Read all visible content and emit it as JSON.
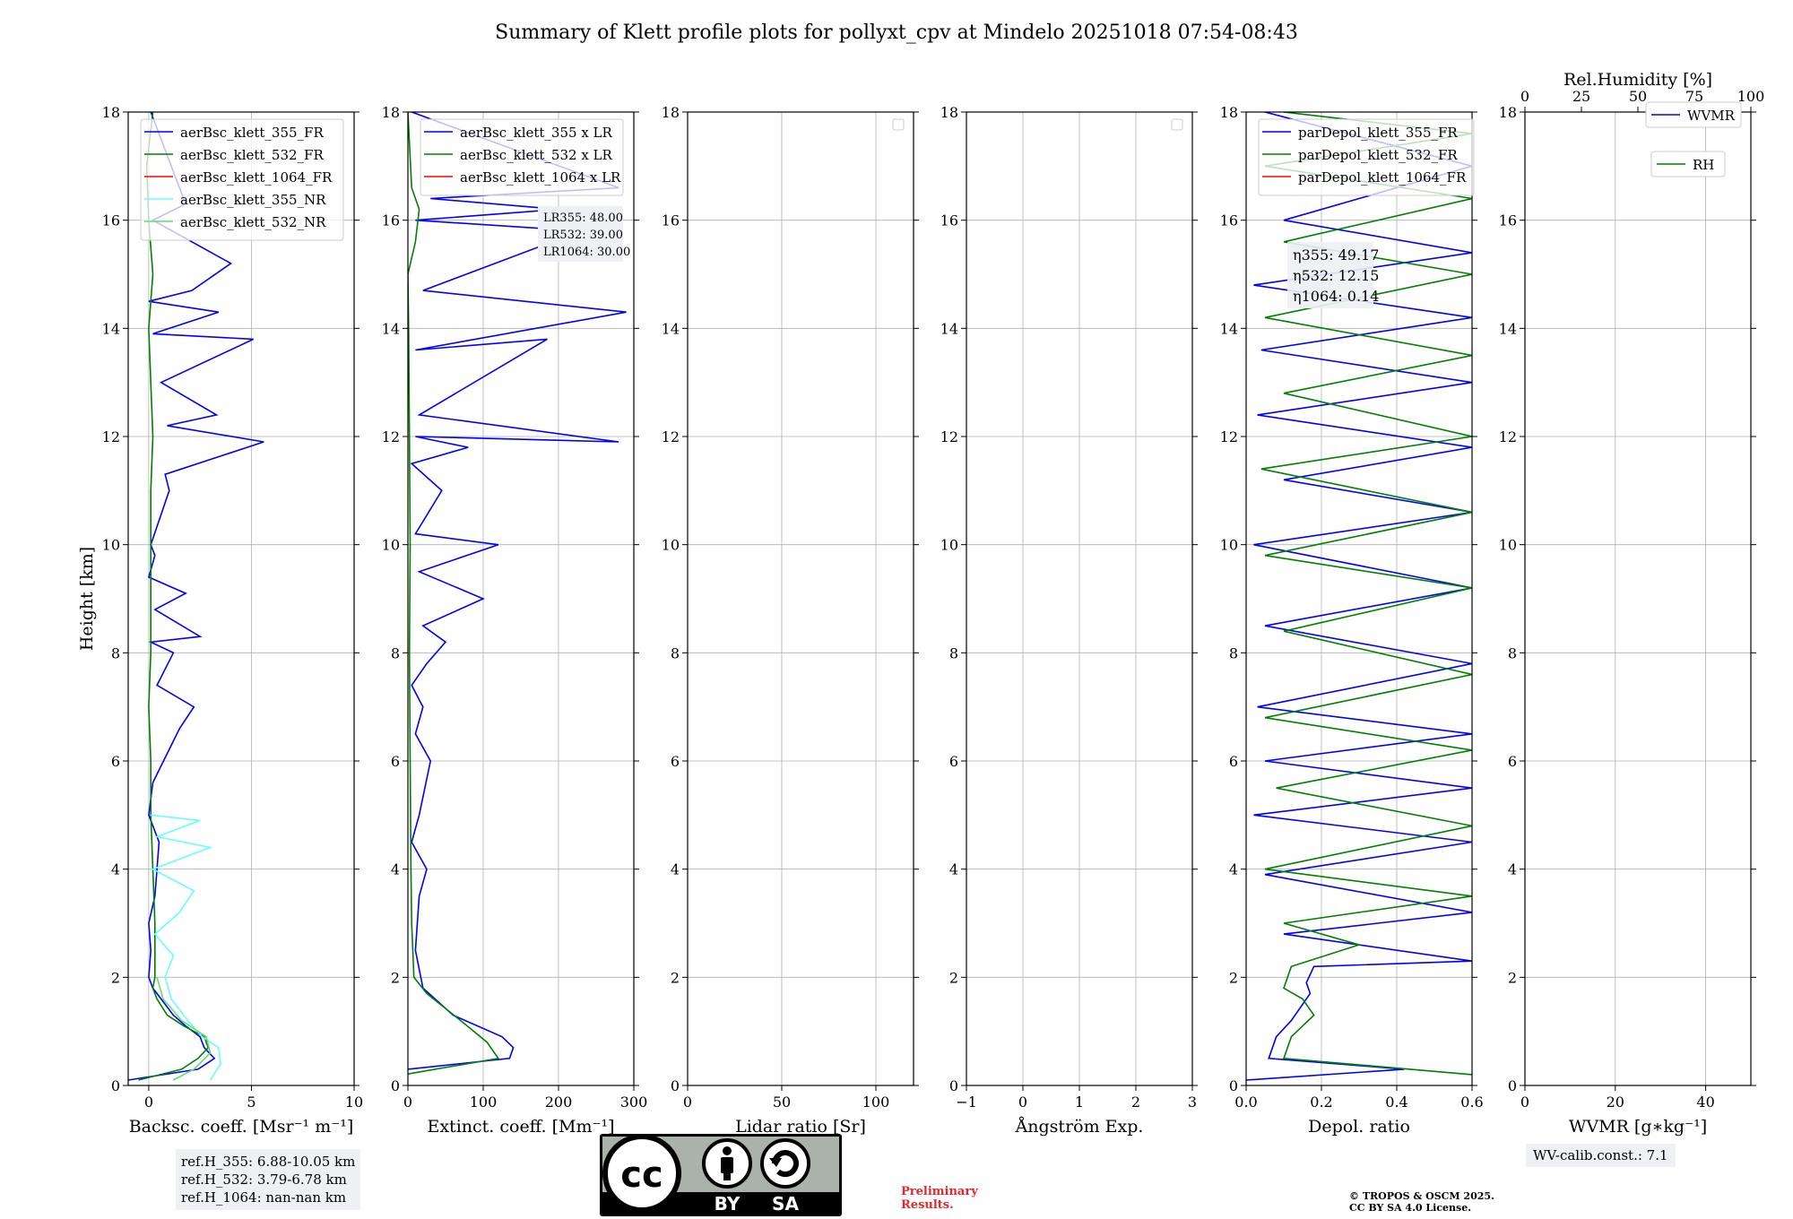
{
  "title": "Summary of Klett profile plots for pollyxt_cpv at Mindelo 20251018 07:54-08:43",
  "colors": {
    "b355": "#0000ff",
    "g532": "#008000",
    "r1064": "#ff0000",
    "c355nr": "#66ffff",
    "g532nr": "#66dd66"
  },
  "chart_data": [
    {
      "type": "line",
      "panel": "backscatter",
      "xlabel": "Backsc. coeff. [Msr⁻¹ m⁻¹]",
      "ylabel": "Height [km]",
      "xlim": [
        -1,
        10
      ],
      "ylim": [
        0,
        18
      ],
      "xticks": [
        0,
        5,
        10
      ],
      "yticks": [
        0,
        2,
        4,
        6,
        8,
        10,
        12,
        14,
        16,
        18
      ],
      "legend": [
        "aerBsc_klett_355_FR",
        "aerBsc_klett_532_FR",
        "aerBsc_klett_1064_FR",
        "aerBsc_klett_355_NR",
        "aerBsc_klett_532_NR"
      ],
      "series": [
        {
          "name": "aerBsc_klett_355_FR",
          "color": "b355",
          "x": [
            -1,
            2.4,
            3.2,
            2.7,
            2.5,
            1.8,
            1.2,
            0.6,
            0.2,
            0.0,
            0.1,
            0.0,
            0.3,
            0.5,
            0.0,
            0.2,
            1.5,
            2.2,
            0.4,
            1.2,
            0.1,
            2.5,
            0.3,
            1.8,
            0.0,
            0.3,
            0.1,
            1.0,
            0.8,
            5.6,
            0.9,
            3.3,
            0.6,
            5.1,
            0.2,
            3.4,
            0.0,
            2.1,
            4.0,
            0.2,
            1.8,
            0.1
          ],
          "y": [
            0.1,
            0.3,
            0.5,
            0.7,
            0.9,
            1.1,
            1.3,
            1.6,
            1.8,
            2.0,
            2.5,
            3.0,
            3.5,
            4.5,
            5.0,
            5.6,
            6.6,
            7.0,
            7.4,
            8.0,
            8.2,
            8.3,
            8.8,
            9.1,
            9.4,
            9.8,
            10.0,
            11.0,
            11.3,
            11.9,
            12.2,
            12.4,
            13.0,
            13.8,
            13.9,
            14.3,
            14.5,
            14.7,
            15.2,
            16.0,
            16.3,
            18.0
          ]
        },
        {
          "name": "aerBsc_klett_532_FR",
          "color": "g532",
          "x": [
            -0.5,
            1.6,
            2.4,
            2.9,
            2.7,
            1.7,
            0.9,
            0.4,
            0.2,
            0.3,
            0.3,
            0.2,
            0.1,
            0.1,
            0.0,
            0.1,
            0.1,
            0.1,
            0.1,
            0.2,
            0.1,
            0.0,
            0.2,
            0.0,
            -0.1,
            0.2
          ],
          "y": [
            0.1,
            0.3,
            0.5,
            0.7,
            0.9,
            1.1,
            1.3,
            1.6,
            1.8,
            2.0,
            3.0,
            4.0,
            5.0,
            6.0,
            7.0,
            8.0,
            9.0,
            10.0,
            11.0,
            12.0,
            13.0,
            14.0,
            15.0,
            16.0,
            17.0,
            18.0
          ]
        },
        {
          "name": "aerBsc_klett_355_NR",
          "color": "c355nr",
          "x": [
            3.0,
            3.5,
            3.4,
            2.6,
            1.9,
            1.1,
            0.8,
            1.2,
            0.3,
            1.5,
            2.2,
            0.2,
            3.0,
            0.4,
            2.5,
            0.1
          ],
          "y": [
            0.1,
            0.4,
            0.7,
            0.9,
            1.2,
            1.6,
            2.0,
            2.4,
            2.8,
            3.2,
            3.6,
            4.0,
            4.4,
            4.6,
            4.9,
            5.0
          ]
        },
        {
          "name": "aerBsc_klett_532_NR",
          "color": "g532nr",
          "x": [
            1.2,
            2.2,
            3.0,
            2.8,
            1.6,
            0.7,
            0.4
          ],
          "y": [
            0.1,
            0.3,
            0.6,
            0.9,
            1.2,
            1.6,
            2.0
          ]
        }
      ]
    },
    {
      "type": "line",
      "panel": "extinction",
      "xlabel": "Extinct. coeff. [Mm⁻¹]",
      "xlim": [
        0,
        300
      ],
      "ylim": [
        0,
        18
      ],
      "xticks": [
        0,
        100,
        200,
        300
      ],
      "yticks": [
        0,
        2,
        4,
        6,
        8,
        10,
        12,
        14,
        16,
        18
      ],
      "legend": [
        "aerBsc_klett_355 x LR",
        "aerBsc_klett_532 x LR",
        "aerBsc_klett_1064 x LR"
      ],
      "lr_labels": [
        "LR355: 48.00",
        "LR532: 39.00",
        "LR1064: 30.00"
      ],
      "series": [
        {
          "name": "aerBsc_klett_355 x LR",
          "color": "b355",
          "x": [
            0,
            135,
            140,
            125,
            60,
            20,
            10,
            15,
            25,
            5,
            15,
            30,
            10,
            20,
            5,
            25,
            50,
            20,
            100,
            15,
            120,
            10,
            45,
            5,
            80,
            10,
            280,
            15,
            185,
            10,
            290,
            20,
            230,
            10,
            200,
            30,
            280,
            5
          ],
          "y": [
            0.3,
            0.5,
            0.7,
            0.9,
            1.3,
            1.8,
            2.5,
            3.5,
            4.0,
            4.5,
            5.0,
            6.0,
            6.5,
            7.0,
            7.4,
            7.8,
            8.2,
            8.5,
            9.0,
            9.5,
            10.0,
            10.2,
            11.0,
            11.5,
            11.8,
            12.0,
            11.9,
            12.4,
            13.8,
            13.6,
            14.3,
            14.7,
            15.8,
            16.0,
            16.2,
            16.4,
            16.6,
            18.0
          ]
        },
        {
          "name": "aerBsc_klett_532 x LR",
          "color": "g532",
          "x": [
            -5,
            120,
            105,
            70,
            25,
            8,
            5,
            4,
            3,
            2,
            3,
            2,
            1,
            0,
            10,
            15,
            5,
            0
          ],
          "y": [
            0.2,
            0.5,
            0.8,
            1.2,
            1.7,
            2.0,
            3.0,
            4.0,
            6.0,
            8.0,
            10.0,
            12.0,
            14.0,
            15.0,
            15.6,
            16.2,
            16.6,
            18.0
          ]
        }
      ]
    },
    {
      "type": "line",
      "panel": "lidar_ratio",
      "xlabel": "Lidar ratio [Sr]",
      "xlim": [
        0,
        120
      ],
      "ylim": [
        0,
        18
      ],
      "xticks": [
        0,
        50,
        100
      ],
      "yticks": [
        0,
        2,
        4,
        6,
        8,
        10,
        12,
        14,
        16,
        18
      ],
      "series": []
    },
    {
      "type": "line",
      "panel": "angstrom",
      "xlabel": "Ångström Exp.",
      "xlim": [
        -1,
        3
      ],
      "ylim": [
        0,
        18
      ],
      "xticks": [
        -1,
        0,
        1,
        2,
        3
      ],
      "yticks": [
        0,
        2,
        4,
        6,
        8,
        10,
        12,
        14,
        16,
        18
      ],
      "series": []
    },
    {
      "type": "line",
      "panel": "depol",
      "xlabel": "Depol. ratio",
      "xlim": [
        0,
        0.6
      ],
      "ylim": [
        0,
        18
      ],
      "xticks": [
        0.0,
        0.2,
        0.4,
        0.6
      ],
      "yticks": [
        0,
        2,
        4,
        6,
        8,
        10,
        12,
        14,
        16,
        18
      ],
      "legend": [
        "parDepol_klett_355_FR",
        "parDepol_klett_532_FR",
        "parDepol_klett_1064_FR"
      ],
      "eta_labels": [
        "η355: 49.17",
        "η532: 12.15",
        "η1064: 0.14"
      ],
      "series": [
        {
          "name": "parDepol_klett_355_FR",
          "color": "b355",
          "x": [
            0.0,
            0.42,
            0.06,
            0.08,
            0.12,
            0.15,
            0.17,
            0.16,
            0.18,
            0.6,
            0.1,
            0.6,
            0.05,
            0.6,
            0.02,
            0.6,
            0.05,
            0.6,
            0.03,
            0.6,
            0.05,
            0.6,
            0.02,
            0.6,
            0.1,
            0.6,
            0.03,
            0.6,
            0.04,
            0.6,
            0.02,
            0.6,
            0.1,
            0.6,
            0.05
          ],
          "y": [
            0.1,
            0.3,
            0.5,
            0.9,
            1.2,
            1.5,
            1.7,
            1.9,
            2.2,
            2.3,
            2.8,
            3.2,
            3.9,
            4.5,
            5.0,
            5.5,
            6.0,
            6.5,
            7.0,
            7.8,
            8.5,
            9.2,
            10.0,
            10.6,
            11.2,
            11.8,
            12.4,
            13.0,
            13.6,
            14.2,
            14.8,
            15.4,
            16.0,
            17.0,
            18.0
          ]
        },
        {
          "name": "parDepol_klett_532_FR",
          "color": "g532",
          "x": [
            0.6,
            0.1,
            0.12,
            0.18,
            0.15,
            0.1,
            0.12,
            0.3,
            0.1,
            0.6,
            0.05,
            0.6,
            0.08,
            0.6,
            0.05,
            0.6,
            0.1,
            0.6,
            0.05,
            0.6,
            0.04,
            0.6,
            0.1,
            0.6,
            0.05,
            0.6,
            0.1,
            0.6,
            0.05,
            0.6,
            0.1
          ],
          "y": [
            0.2,
            0.5,
            0.9,
            1.3,
            1.6,
            1.8,
            2.2,
            2.6,
            3.0,
            3.5,
            4.0,
            4.8,
            5.5,
            6.2,
            6.8,
            7.6,
            8.4,
            9.2,
            9.8,
            10.6,
            11.4,
            12.0,
            12.8,
            13.5,
            14.2,
            15.0,
            15.6,
            16.4,
            17.0,
            17.6,
            18.0
          ]
        }
      ]
    },
    {
      "type": "line",
      "panel": "wvmr",
      "xlabel": "WVMR [g∗kg⁻¹]",
      "x2label": "Rel.Humidity [%]",
      "xlim": [
        0,
        50
      ],
      "ylim": [
        0,
        18
      ],
      "xticks": [
        0,
        20,
        40
      ],
      "x2ticks": [
        0,
        25,
        50,
        75,
        100
      ],
      "yticks": [
        0,
        2,
        4,
        6,
        8,
        10,
        12,
        14,
        16,
        18
      ],
      "legend": [
        "WVMR",
        "RH"
      ],
      "series": []
    }
  ],
  "footer": {
    "ref_lines": [
      "ref.H_355: 6.88-10.05 km",
      "ref.H_532: 3.79-6.78 km",
      "ref.H_1064: nan-nan km"
    ],
    "license_by": "BY",
    "license_sa": "SA",
    "license_cc": "cc",
    "preliminary_line1": "Preliminary",
    "preliminary_line2": "Results.",
    "copyright_line1": "© TROPOS & OSCM 2025.",
    "copyright_line2": "CC BY SA 4.0 License.",
    "wv_calib": "WV-calib.const.: 7.1"
  }
}
